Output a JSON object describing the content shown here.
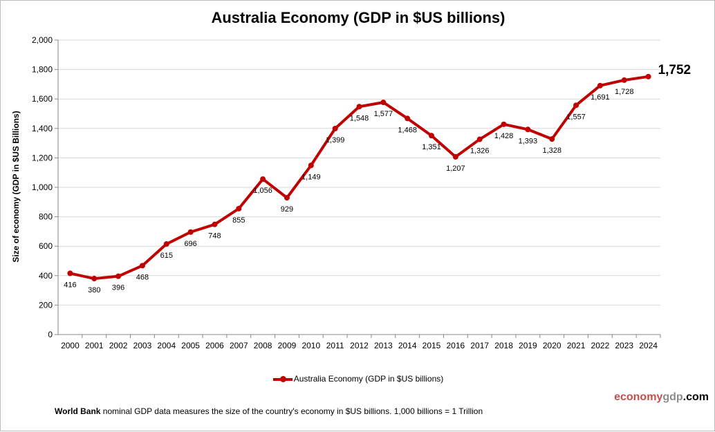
{
  "chart_data": {
    "type": "line",
    "title": "Australia Economy (GDP in $US billions)",
    "ylabel": "Size of economy (GDP in $US Billions)",
    "xlabel": "",
    "ylim": [
      0,
      2000
    ],
    "yticks": [
      "0",
      "200",
      "400",
      "600",
      "800",
      "1,000",
      "1,200",
      "1,400",
      "1,600",
      "1,800",
      "2,000"
    ],
    "grid": true,
    "legend_position": "bottom",
    "categories": [
      "2000",
      "2001",
      "2002",
      "2003",
      "2004",
      "2005",
      "2006",
      "2007",
      "2008",
      "2009",
      "2010",
      "2011",
      "2012",
      "2013",
      "2014",
      "2015",
      "2016",
      "2017",
      "2018",
      "2019",
      "2020",
      "2021",
      "2022",
      "2023",
      "2024"
    ],
    "series": [
      {
        "name": "Australia Economy (GDP in $US billions)",
        "color": "#c00000",
        "values": [
          416,
          380,
          396,
          468,
          615,
          696,
          748,
          855,
          1056,
          929,
          1149,
          1399,
          1548,
          1577,
          1468,
          1351,
          1207,
          1326,
          1428,
          1393,
          1328,
          1557,
          1691,
          1728,
          1752
        ],
        "labels": [
          "416",
          "380",
          "396",
          "468",
          "615",
          "696",
          "748",
          "855",
          "1,056",
          "929",
          "1,149",
          "1,399",
          "1,548",
          "1,577",
          "1,468",
          "1,351",
          "1,207",
          "1,326",
          "1,428",
          "1,393",
          "1,328",
          "1,557",
          "1,691",
          "1,728",
          "1,752"
        ]
      }
    ]
  },
  "brand": {
    "part1": "economy",
    "part2": "gdp",
    "part3": ".com",
    "color1": "#c0504d",
    "color2": "#8c8c8c"
  },
  "footnote": {
    "bold": "World Bank",
    "text": " nominal GDP data  measures the size of the country's economy in $US billions. 1,000 billions = 1 Trillion"
  }
}
